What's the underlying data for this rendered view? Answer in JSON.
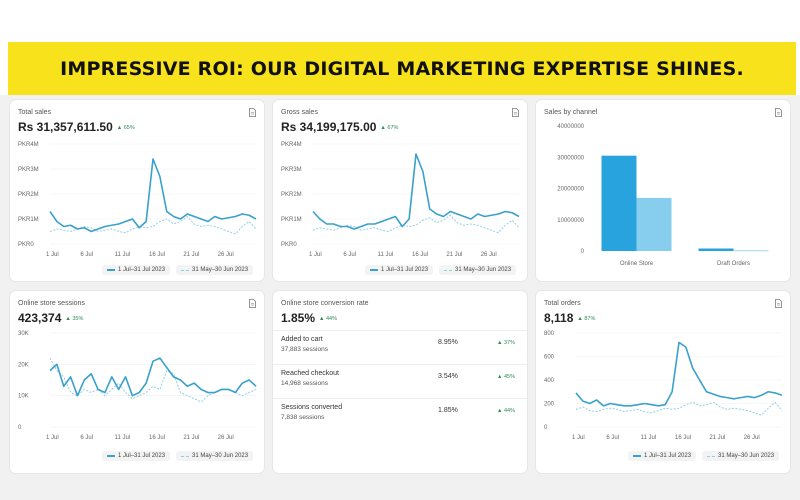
{
  "banner": {
    "title": "IMPRESSIVE ROI: OUR DIGITAL MARKETING EXPERTISE SHINES."
  },
  "colors": {
    "banner_bg": "#f7e21b",
    "primary_series": "#3aa0cc",
    "comparison_series": "#8fd0e6",
    "positive_change": "#2e8b57"
  },
  "cards": {
    "total_sales": {
      "label": "Total sales",
      "value": "Rs 31,357,611.50",
      "change": "▲ 65%"
    },
    "gross_sales": {
      "label": "Gross sales",
      "value": "Rs 34,199,175.00",
      "change": "▲ 67%"
    },
    "sales_by_channel": {
      "label": "Sales by channel"
    },
    "online_store_sessions": {
      "label": "Online store sessions",
      "value": "423,374",
      "change": "▲ 35%"
    },
    "conversion_rate": {
      "label": "Online store conversion rate",
      "value": "1.85%",
      "change": "▲ 44%",
      "rows": [
        {
          "name": "Added to cart",
          "sessions": "37,883 sessions",
          "rate": "8.95%",
          "change": "▲ 37%"
        },
        {
          "name": "Reached checkout",
          "sessions": "14,968 sessions",
          "rate": "3.54%",
          "change": "▲ 45%"
        },
        {
          "name": "Sessions converted",
          "sessions": "7,838 sessions",
          "rate": "1.85%",
          "change": "▲ 44%"
        }
      ]
    },
    "total_orders": {
      "label": "Total orders",
      "value": "8,118",
      "change": "▲ 87%"
    }
  },
  "legend": {
    "current": "1 Jul–31 Jul 2023",
    "previous": "31 May–30 Jun 2023"
  },
  "icons": {
    "export": "document-icon",
    "legend_current": "solid-line-icon",
    "legend_previous": "dashed-line-icon"
  },
  "chart_data": [
    {
      "id": "total_sales",
      "type": "line",
      "x": [
        1,
        2,
        3,
        4,
        5,
        6,
        7,
        8,
        9,
        10,
        11,
        12,
        13,
        14,
        15,
        16,
        17,
        18,
        19,
        20,
        21,
        22,
        23,
        24,
        25,
        26,
        27,
        28,
        29,
        30,
        31
      ],
      "x_tick_labels": [
        "1 Jul",
        "6 Jul",
        "11 Jul",
        "16 Jul",
        "21 Jul",
        "26 Jul"
      ],
      "x_tick_positions": [
        1,
        6,
        11,
        16,
        21,
        26
      ],
      "y_tick_labels": [
        "PKR0",
        "PKR1M",
        "PKR2M",
        "PKR3M",
        "PKR4M"
      ],
      "ylim": [
        0,
        4000000
      ],
      "series": [
        {
          "name": "1 Jul–31 Jul 2023",
          "values": [
            1300000,
            900000,
            700000,
            750000,
            600000,
            650000,
            500000,
            600000,
            700000,
            750000,
            800000,
            900000,
            1000000,
            650000,
            900000,
            3400000,
            2700000,
            1300000,
            1100000,
            1000000,
            1200000,
            1100000,
            1000000,
            900000,
            1100000,
            1000000,
            1050000,
            1100000,
            1200000,
            1150000,
            1000000
          ]
        },
        {
          "name": "31 May–30 Jun 2023",
          "values": [
            500000,
            600000,
            550000,
            500000,
            600000,
            700000,
            650000,
            500000,
            550000,
            600000,
            500000,
            450000,
            600000,
            700000,
            650000,
            700000,
            900000,
            1000000,
            800000,
            900000,
            1100000,
            800000,
            700000,
            750000,
            700000,
            600000,
            500000,
            400000,
            700000,
            900000,
            600000
          ]
        }
      ]
    },
    {
      "id": "gross_sales",
      "type": "line",
      "x": [
        1,
        2,
        3,
        4,
        5,
        6,
        7,
        8,
        9,
        10,
        11,
        12,
        13,
        14,
        15,
        16,
        17,
        18,
        19,
        20,
        21,
        22,
        23,
        24,
        25,
        26,
        27,
        28,
        29,
        30,
        31
      ],
      "x_tick_labels": [
        "1 Jul",
        "6 Jul",
        "11 Jul",
        "16 Jul",
        "21 Jul",
        "26 Jul"
      ],
      "x_tick_positions": [
        1,
        6,
        11,
        16,
        21,
        26
      ],
      "y_tick_labels": [
        "PKR0",
        "PKR1M",
        "PKR2M",
        "PKR3M",
        "PKR4M"
      ],
      "ylim": [
        0,
        4000000
      ],
      "series": [
        {
          "name": "1 Jul–31 Jul 2023",
          "values": [
            1300000,
            1000000,
            800000,
            800000,
            700000,
            700000,
            600000,
            700000,
            800000,
            800000,
            900000,
            1000000,
            1100000,
            700000,
            1000000,
            3600000,
            2900000,
            1400000,
            1200000,
            1100000,
            1300000,
            1200000,
            1100000,
            1000000,
            1200000,
            1100000,
            1150000,
            1200000,
            1300000,
            1250000,
            1100000
          ]
        },
        {
          "name": "31 May–30 Jun 2023",
          "values": [
            550000,
            650000,
            600000,
            550000,
            650000,
            750000,
            700000,
            550000,
            600000,
            650000,
            550000,
            500000,
            650000,
            750000,
            700000,
            750000,
            950000,
            1050000,
            850000,
            950000,
            1150000,
            850000,
            750000,
            800000,
            750000,
            650000,
            550000,
            450000,
            750000,
            950000,
            650000
          ]
        }
      ]
    },
    {
      "id": "sales_by_channel",
      "type": "bar",
      "categories": [
        "Online Store",
        "Draft Orders"
      ],
      "y_tick_labels": [
        "0",
        "10000000",
        "20000000",
        "30000000",
        "40000000"
      ],
      "ylim": [
        0,
        40000000
      ],
      "series": [
        {
          "name": "1 Jul–31 Jul 2023",
          "values": [
            30500000,
            800000
          ]
        },
        {
          "name": "31 May–30 Jun 2023",
          "values": [
            17000000,
            200000
          ]
        }
      ]
    },
    {
      "id": "online_store_sessions",
      "type": "line",
      "x": [
        1,
        2,
        3,
        4,
        5,
        6,
        7,
        8,
        9,
        10,
        11,
        12,
        13,
        14,
        15,
        16,
        17,
        18,
        19,
        20,
        21,
        22,
        23,
        24,
        25,
        26,
        27,
        28,
        29,
        30,
        31
      ],
      "x_tick_labels": [
        "1 Jul",
        "6 Jul",
        "11 Jul",
        "16 Jul",
        "21 Jul",
        "26 Jul"
      ],
      "x_tick_positions": [
        1,
        6,
        11,
        16,
        21,
        26
      ],
      "y_tick_labels": [
        "0",
        "10K",
        "20K",
        "30K"
      ],
      "ylim": [
        0,
        30000
      ],
      "series": [
        {
          "name": "1 Jul–31 Jul 2023",
          "values": [
            18000,
            20000,
            13000,
            16000,
            10000,
            15000,
            17000,
            12000,
            11000,
            16000,
            12000,
            16000,
            10000,
            11000,
            14000,
            21000,
            22000,
            19000,
            16000,
            15000,
            13000,
            14000,
            12000,
            11000,
            11000,
            12000,
            12000,
            11000,
            14000,
            15000,
            13000
          ]
        },
        {
          "name": "31 May–30 Jun 2023",
          "values": [
            22000,
            18000,
            16000,
            11000,
            10000,
            12000,
            11000,
            12000,
            10000,
            12000,
            14000,
            11000,
            9000,
            10000,
            11000,
            13000,
            12000,
            18000,
            17000,
            11000,
            10000,
            9000,
            8000,
            10000,
            11000,
            12000,
            12000,
            11000,
            10000,
            11000,
            12000
          ]
        }
      ]
    },
    {
      "id": "total_orders",
      "type": "line",
      "x": [
        1,
        2,
        3,
        4,
        5,
        6,
        7,
        8,
        9,
        10,
        11,
        12,
        13,
        14,
        15,
        16,
        17,
        18,
        19,
        20,
        21,
        22,
        23,
        24,
        25,
        26,
        27,
        28,
        29,
        30,
        31
      ],
      "x_tick_labels": [
        "1 Jul",
        "6 Jul",
        "11 Jul",
        "16 Jul",
        "21 Jul",
        "26 Jul"
      ],
      "x_tick_positions": [
        1,
        6,
        11,
        16,
        21,
        26
      ],
      "y_tick_labels": [
        "0",
        "200",
        "400",
        "600",
        "800"
      ],
      "ylim": [
        0,
        800
      ],
      "series": [
        {
          "name": "1 Jul–31 Jul 2023",
          "values": [
            290,
            220,
            200,
            230,
            180,
            200,
            190,
            180,
            180,
            190,
            200,
            190,
            180,
            190,
            300,
            720,
            680,
            500,
            400,
            300,
            280,
            260,
            250,
            240,
            250,
            260,
            250,
            270,
            300,
            290,
            270
          ]
        },
        {
          "name": "31 May–30 Jun 2023",
          "values": [
            150,
            170,
            140,
            130,
            150,
            160,
            150,
            130,
            140,
            150,
            130,
            120,
            140,
            160,
            150,
            160,
            190,
            210,
            180,
            190,
            210,
            170,
            150,
            160,
            150,
            140,
            120,
            100,
            160,
            210,
            140
          ]
        }
      ]
    }
  ]
}
